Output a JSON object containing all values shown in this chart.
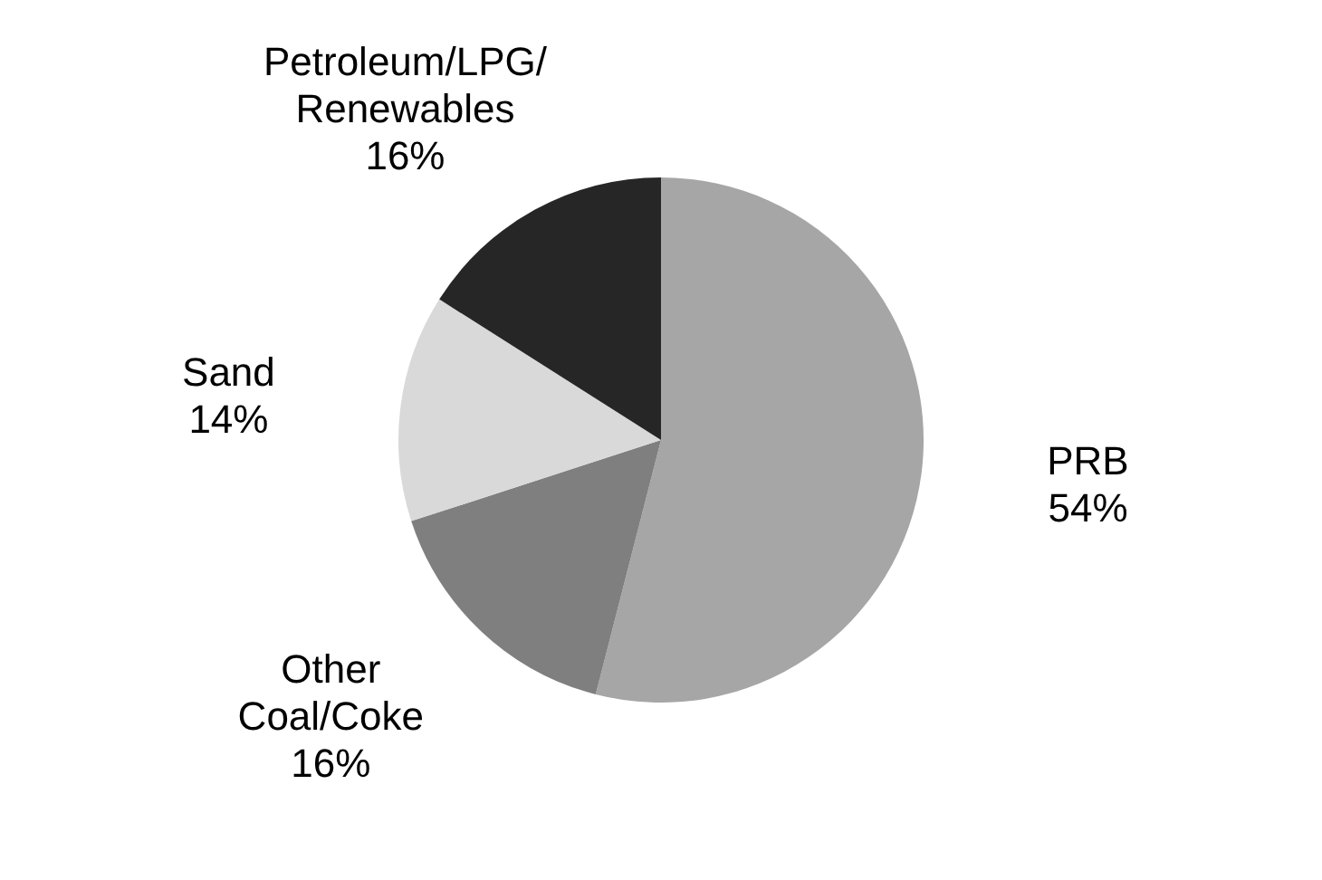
{
  "chart_data": {
    "type": "pie",
    "categories": [
      "PRB",
      "Other Coal/Coke",
      "Sand",
      "Petroleum/LPG/Renewables"
    ],
    "values": [
      54,
      16,
      14,
      16
    ],
    "value_labels": [
      "54%",
      "16%",
      "14%",
      "16%"
    ],
    "colors": [
      "#a6a6a6",
      "#7f7f7f",
      "#d9d9d9",
      "#262626"
    ]
  }
}
